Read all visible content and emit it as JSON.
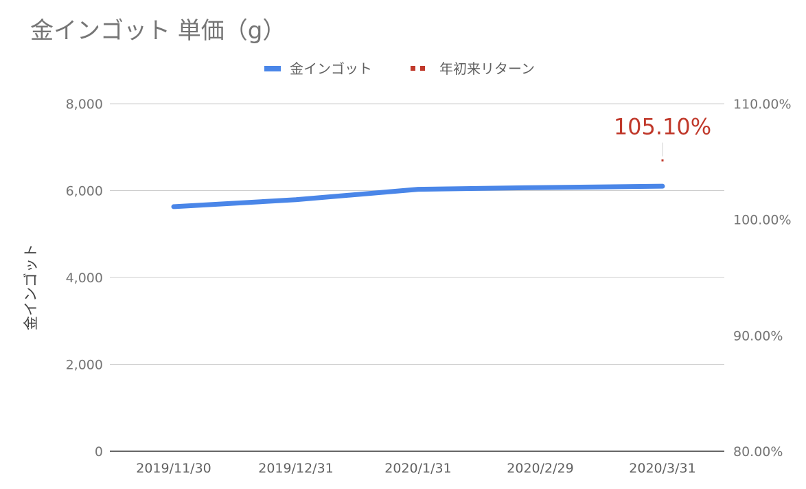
{
  "chart_data": {
    "type": "line",
    "title": "金インゴット 単価（g）",
    "categories": [
      "2019/11/30",
      "2019/12/31",
      "2020/1/31",
      "2020/2/29",
      "2020/3/31"
    ],
    "series": [
      {
        "name": "金インゴット",
        "axis": "left",
        "color": "#4a86e8",
        "style": "solid",
        "values": [
          5630,
          5790,
          6030,
          6070,
          6100
        ]
      },
      {
        "name": "年初来リターン",
        "axis": "right",
        "color": "#c0392b",
        "style": "dotted",
        "values": [
          null,
          null,
          null,
          null,
          1.051
        ],
        "data_labels": [
          null,
          null,
          null,
          null,
          "105.10%"
        ]
      }
    ],
    "ylabel": "金インゴット",
    "ylim": [
      0,
      8000
    ],
    "yticks": [
      "8,000",
      "6,000",
      "4,000",
      "2,000",
      "0"
    ],
    "ytick_values": [
      8000,
      6000,
      4000,
      2000,
      0
    ],
    "y2lim": [
      0.8,
      1.1
    ],
    "y2ticks": [
      "110.00%",
      "100.00%",
      "90.00%",
      "80.00%"
    ],
    "y2tick_values": [
      1.1,
      1.0,
      0.9,
      0.8
    ],
    "grid": true,
    "legend_position": "top"
  }
}
